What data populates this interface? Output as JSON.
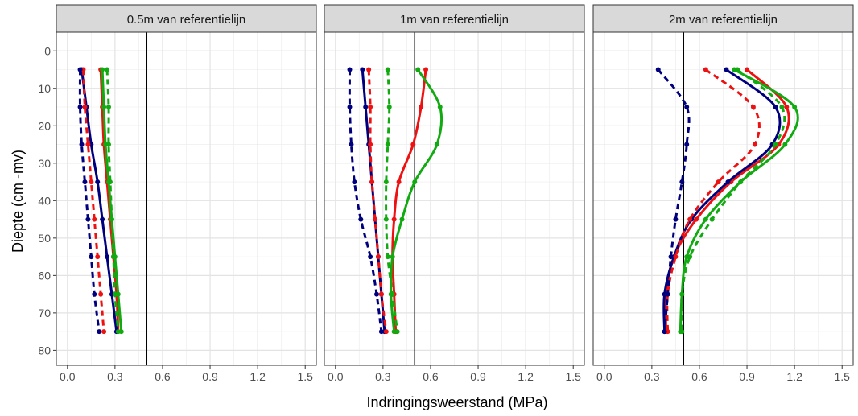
{
  "chart_data": {
    "type": "line",
    "xlabel": "Indringingsweerstand (MPa)",
    "ylabel": "Diepte (cm -mv)",
    "xlim": [
      -0.07,
      1.57
    ],
    "ylim": [
      84,
      -5
    ],
    "x_ticks": [
      0.0,
      0.3,
      0.6,
      0.9,
      1.2,
      1.5
    ],
    "x_tick_labels": [
      "0.0",
      "0.3",
      "0.6",
      "0.9",
      "1.2",
      "1.5"
    ],
    "y_ticks": [
      0,
      10,
      20,
      30,
      40,
      50,
      60,
      70,
      80
    ],
    "y_tick_labels": [
      "0",
      "10",
      "20",
      "30",
      "40",
      "50",
      "60",
      "70",
      "80"
    ],
    "reference_line_x": 0.5,
    "grid": true,
    "legend": "none",
    "colors": {
      "red": "#ee1111",
      "green": "#11aa11",
      "navy": "#00007f"
    },
    "panels": [
      {
        "title": "0.5m van referentielijn",
        "series": [
          {
            "color": "red",
            "style": "solid",
            "depth": [
              5,
              15,
              25,
              35,
              45,
              55,
              65,
              75
            ],
            "x": [
              0.21,
              0.22,
              0.23,
              0.25,
              0.27,
              0.29,
              0.31,
              0.32
            ]
          },
          {
            "color": "green",
            "style": "solid",
            "depth": [
              5,
              15,
              25,
              35,
              45,
              55,
              65,
              75
            ],
            "x": [
              0.22,
              0.23,
              0.24,
              0.26,
              0.28,
              0.3,
              0.32,
              0.34
            ]
          },
          {
            "color": "navy",
            "style": "solid",
            "depth": [
              5,
              15,
              25,
              35,
              45,
              55,
              65,
              75
            ],
            "x": [
              0.09,
              0.12,
              0.15,
              0.19,
              0.22,
              0.25,
              0.28,
              0.31
            ]
          },
          {
            "color": "red",
            "style": "dashed",
            "depth": [
              5,
              15,
              25,
              35,
              45,
              55,
              65,
              75
            ],
            "x": [
              0.1,
              0.11,
              0.13,
              0.15,
              0.17,
              0.19,
              0.21,
              0.23
            ]
          },
          {
            "color": "green",
            "style": "dashed",
            "depth": [
              5,
              15,
              25,
              35,
              45,
              55,
              65,
              75
            ],
            "x": [
              0.25,
              0.26,
              0.26,
              0.27,
              0.28,
              0.29,
              0.3,
              0.32
            ]
          },
          {
            "color": "navy",
            "style": "dashed",
            "depth": [
              5,
              15,
              25,
              35,
              45,
              55,
              65,
              75
            ],
            "x": [
              0.08,
              0.08,
              0.09,
              0.11,
              0.13,
              0.15,
              0.17,
              0.2
            ]
          }
        ]
      },
      {
        "title": "1m van referentielijn",
        "series": [
          {
            "color": "red",
            "style": "solid",
            "depth": [
              5,
              15,
              25,
              35,
              45,
              55,
              65,
              75
            ],
            "x": [
              0.57,
              0.54,
              0.49,
              0.4,
              0.37,
              0.36,
              0.37,
              0.38
            ]
          },
          {
            "color": "green",
            "style": "solid",
            "depth": [
              5,
              15,
              25,
              35,
              45,
              55,
              65,
              75
            ],
            "x": [
              0.52,
              0.66,
              0.64,
              0.5,
              0.42,
              0.36,
              0.35,
              0.37
            ]
          },
          {
            "color": "navy",
            "style": "solid",
            "depth": [
              5,
              15,
              25,
              35,
              45,
              55,
              65,
              75
            ],
            "x": [
              0.17,
              0.19,
              0.21,
              0.23,
              0.25,
              0.27,
              0.29,
              0.31
            ]
          },
          {
            "color": "red",
            "style": "dashed",
            "depth": [
              5,
              15,
              25,
              35,
              45,
              55,
              65,
              75
            ],
            "x": [
              0.21,
              0.22,
              0.22,
              0.23,
              0.25,
              0.27,
              0.29,
              0.32
            ]
          },
          {
            "color": "green",
            "style": "dashed",
            "depth": [
              5,
              15,
              25,
              35,
              45,
              55,
              65,
              75
            ],
            "x": [
              0.33,
              0.34,
              0.33,
              0.32,
              0.32,
              0.33,
              0.36,
              0.39
            ]
          },
          {
            "color": "navy",
            "style": "dashed",
            "depth": [
              5,
              15,
              25,
              35,
              45,
              55,
              65,
              75
            ],
            "x": [
              0.09,
              0.09,
              0.1,
              0.12,
              0.16,
              0.22,
              0.26,
              0.29
            ]
          }
        ]
      },
      {
        "title": "2m van referentielijn",
        "series": [
          {
            "color": "red",
            "style": "solid",
            "depth": [
              5,
              15,
              25,
              35,
              45,
              55,
              65,
              75
            ],
            "x": [
              0.9,
              1.15,
              1.1,
              0.8,
              0.58,
              0.44,
              0.39,
              0.39
            ]
          },
          {
            "color": "green",
            "style": "solid",
            "depth": [
              5,
              15,
              25,
              35,
              45,
              55,
              65,
              75
            ],
            "x": [
              0.82,
              1.2,
              1.14,
              0.86,
              0.64,
              0.52,
              0.49,
              0.48
            ]
          },
          {
            "color": "navy",
            "style": "solid",
            "depth": [
              5,
              15,
              25,
              35,
              45,
              55,
              65,
              75
            ],
            "x": [
              0.77,
              1.08,
              1.06,
              0.78,
              0.55,
              0.44,
              0.38,
              0.38
            ]
          },
          {
            "color": "red",
            "style": "dashed",
            "depth": [
              5,
              15,
              25,
              35,
              45,
              55,
              65,
              75
            ],
            "x": [
              0.64,
              0.94,
              0.95,
              0.72,
              0.54,
              0.45,
              0.4,
              0.4
            ]
          },
          {
            "color": "green",
            "style": "dashed",
            "depth": [
              5,
              15,
              25,
              35,
              45,
              55,
              65,
              75
            ],
            "x": [
              0.84,
              1.12,
              1.08,
              0.86,
              0.68,
              0.54,
              0.49,
              0.49
            ]
          },
          {
            "color": "navy",
            "style": "dashed",
            "depth": [
              5,
              15,
              25,
              35,
              45,
              55,
              65,
              75
            ],
            "x": [
              0.34,
              0.52,
              0.52,
              0.49,
              0.45,
              0.42,
              0.4,
              0.38
            ]
          }
        ]
      }
    ]
  }
}
